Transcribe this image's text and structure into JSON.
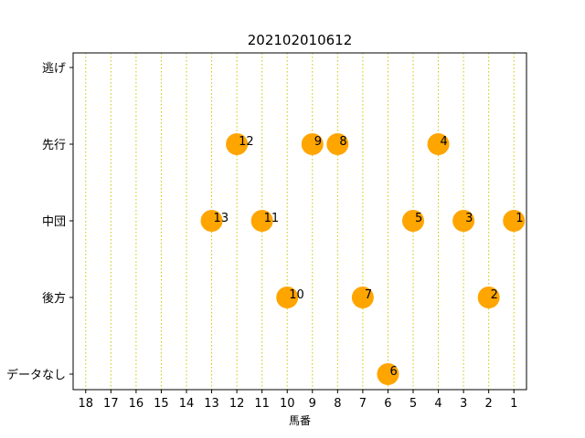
{
  "chart_data": {
    "type": "scatter",
    "title": "202102010612",
    "xlabel": "馬番",
    "ylabel": "",
    "x_ticks": [
      18,
      17,
      16,
      15,
      14,
      13,
      12,
      11,
      10,
      9,
      8,
      7,
      6,
      5,
      4,
      3,
      2,
      1
    ],
    "x_reversed": true,
    "xlim": [
      18.5,
      0.5
    ],
    "y_categories": [
      "逃げ",
      "先行",
      "中団",
      "後方",
      "データなし"
    ],
    "grid": "vertical dotted lines at each x tick",
    "marker_color": "#FFA500",
    "grid_color": "#C8C800",
    "points": [
      {
        "x": 12,
        "y": "先行",
        "label": "12"
      },
      {
        "x": 9,
        "y": "先行",
        "label": "9"
      },
      {
        "x": 8,
        "y": "先行",
        "label": "8"
      },
      {
        "x": 4,
        "y": "先行",
        "label": "4"
      },
      {
        "x": 13,
        "y": "中団",
        "label": "13"
      },
      {
        "x": 11,
        "y": "中団",
        "label": "11"
      },
      {
        "x": 5,
        "y": "中団",
        "label": "5"
      },
      {
        "x": 3,
        "y": "中団",
        "label": "3"
      },
      {
        "x": 1,
        "y": "中団",
        "label": "1"
      },
      {
        "x": 10,
        "y": "後方",
        "label": "10"
      },
      {
        "x": 7,
        "y": "後方",
        "label": "7"
      },
      {
        "x": 2,
        "y": "後方",
        "label": "2"
      },
      {
        "x": 6,
        "y": "データなし",
        "label": "6"
      }
    ]
  }
}
